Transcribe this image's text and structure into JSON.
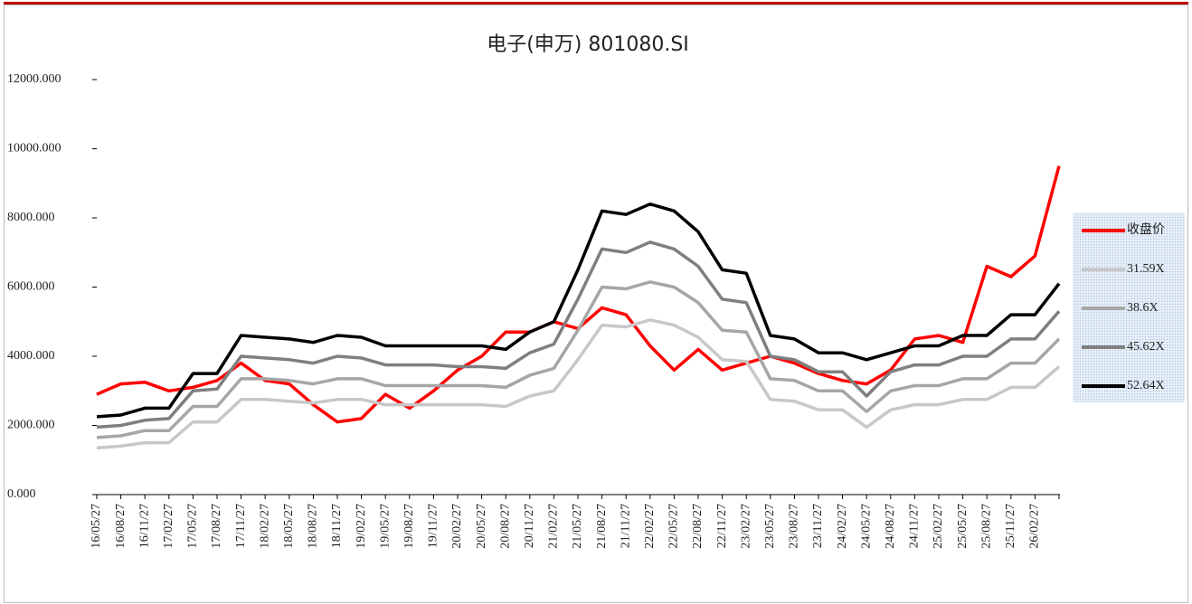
{
  "chart_data": {
    "type": "line",
    "title": "电子(申万) 801080.SI",
    "categories": [
      "16/05/27",
      "16/08/27",
      "16/11/27",
      "17/02/27",
      "17/05/27",
      "17/08/27",
      "17/11/27",
      "18/02/27",
      "18/05/27",
      "18/08/27",
      "18/11/27",
      "19/02/27",
      "19/05/27",
      "19/08/27",
      "19/11/27",
      "20/02/27",
      "20/05/27",
      "20/08/27",
      "20/11/27",
      "21/02/27",
      "21/05/27",
      "21/08/27",
      "21/11/27",
      "22/02/27",
      "22/05/27",
      "22/08/27",
      "22/11/27",
      "23/02/27",
      "23/05/27",
      "23/08/27",
      "23/11/27",
      "24/02/27",
      "24/05/27",
      "24/08/27",
      "24/11/27",
      "25/02/27",
      "25/05/27",
      "25/08/27",
      "25/11/27",
      "26/02/27",
      null
    ],
    "series": [
      {
        "name": "收盘价",
        "color": "#ff0000",
        "values": [
          2900,
          3200,
          3250,
          3000,
          3100,
          3300,
          3800,
          3300,
          3200,
          2600,
          2100,
          2200,
          2900,
          2500,
          3000,
          3600,
          4000,
          4700,
          4700,
          5000,
          4800,
          5400,
          5200,
          4300,
          3600,
          4200,
          3600,
          3800,
          4000,
          3800,
          3500,
          3300,
          3200,
          3600,
          4500,
          4600,
          4400,
          6600,
          6300,
          6900,
          9500
        ]
      },
      {
        "name": "31.59X",
        "color": "#c8c8c8",
        "values": [
          1350,
          1400,
          1500,
          1500,
          2100,
          2100,
          2750,
          2750,
          2700,
          2650,
          2750,
          2750,
          2600,
          2600,
          2600,
          2600,
          2600,
          2550,
          2850,
          3000,
          3900,
          4900,
          4850,
          5050,
          4900,
          4550,
          3900,
          3850,
          2750,
          2700,
          2450,
          2450,
          1950,
          2450,
          2600,
          2600,
          2750,
          2750,
          3100,
          3100,
          3700
        ]
      },
      {
        "name": "38.6X",
        "color": "#a6a6a6",
        "values": [
          1650,
          1700,
          1850,
          1850,
          2550,
          2550,
          3350,
          3350,
          3300,
          3200,
          3350,
          3350,
          3150,
          3150,
          3150,
          3150,
          3150,
          3100,
          3450,
          3650,
          4750,
          6000,
          5950,
          6150,
          6000,
          5550,
          4750,
          4700,
          3350,
          3300,
          3000,
          3000,
          2400,
          3000,
          3150,
          3150,
          3350,
          3350,
          3800,
          3800,
          4500
        ]
      },
      {
        "name": "45.62X",
        "color": "#7f7f7f",
        "values": [
          1950,
          2000,
          2150,
          2200,
          3000,
          3050,
          4000,
          3950,
          3900,
          3800,
          4000,
          3950,
          3750,
          3750,
          3750,
          3700,
          3700,
          3650,
          4100,
          4350,
          5650,
          7100,
          7000,
          7300,
          7100,
          6600,
          5650,
          5550,
          4000,
          3900,
          3550,
          3550,
          2850,
          3550,
          3750,
          3750,
          4000,
          4000,
          4500,
          4500,
          5300
        ]
      },
      {
        "name": "52.64X",
        "color": "#000000",
        "values": [
          2250,
          2300,
          2500,
          2500,
          3500,
          3500,
          4600,
          4550,
          4500,
          4400,
          4600,
          4550,
          4300,
          4300,
          4300,
          4300,
          4300,
          4200,
          4700,
          5000,
          6500,
          8200,
          8100,
          8400,
          8200,
          7600,
          6500,
          6400,
          4600,
          4500,
          4100,
          4100,
          3900,
          4100,
          4300,
          4300,
          4600,
          4600,
          5200,
          5200,
          6100
        ]
      }
    ],
    "ylim": [
      0,
      12000
    ],
    "yticks": [
      {
        "value": 0,
        "label": "0.000"
      },
      {
        "value": 2000,
        "label": "2000.000"
      },
      {
        "value": 4000,
        "label": "4000.000"
      },
      {
        "value": 6000,
        "label": "6000.000"
      },
      {
        "value": 8000,
        "label": "8000.000"
      },
      {
        "value": 10000,
        "label": "10000.000"
      },
      {
        "value": 12000,
        "label": "12000.000"
      }
    ],
    "legend": "right"
  }
}
